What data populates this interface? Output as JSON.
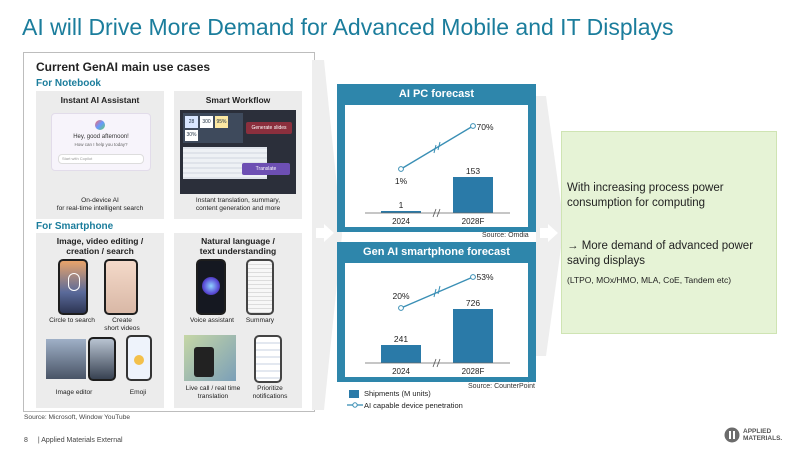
{
  "title": "AI will Drive More Demand for Advanced Mobile and IT Displays",
  "left_panel": {
    "heading": "Current GenAI main use cases",
    "notebook_label": "For Notebook",
    "smartphone_label": "For Smartphone",
    "cards": {
      "assistant": {
        "title": "Instant AI Assistant",
        "caption": "On-device AI\nfor real-time intelligent search",
        "screen_text": "Hey, good afternoon!",
        "screen_sub": "How can I help you today?",
        "search_placeholder": "Start with Copilot"
      },
      "workflow": {
        "title": "Smart Workflow",
        "caption": "Instant translation, summary,\ncontent generation and more",
        "generate_label": "Generate slides",
        "translate_label": "Translate",
        "stats": [
          "28",
          "300",
          "95%",
          "30%"
        ]
      },
      "image_edit": {
        "title": "Image, video editing /\ncreation / search",
        "circle_caption": "Circle to search",
        "video_caption": "Create\nshort videos",
        "editor_caption": "Image editor",
        "emoji_caption": "Emoji"
      },
      "language": {
        "title": "Natural language /\ntext understanding",
        "voice_caption": "Voice assistant",
        "summary_caption": "Summary",
        "live_caption": "Live call / real time\ntranslation",
        "prioritize_caption": "Prioritize\nnotifications"
      }
    },
    "source": "Source: Microsoft, Window YouTube"
  },
  "pc_chart": {
    "title": "AI PC forecast",
    "source": "Source: Omdia"
  },
  "phone_chart": {
    "title": "Gen AI smartphone forecast",
    "source": "Source: CounterPoint"
  },
  "legend": {
    "bars": "Shipments (M units)",
    "line": "AI capable device penetration"
  },
  "chart_data": [
    {
      "type": "bar",
      "title": "AI PC forecast",
      "categories": [
        "2024",
        "2028F"
      ],
      "series": [
        {
          "name": "Shipments (M units)",
          "type": "bar",
          "values": [
            1,
            153
          ]
        },
        {
          "name": "AI capable device penetration",
          "type": "line",
          "values": [
            "1%",
            "70%"
          ]
        }
      ],
      "bar_labels": [
        "1",
        "153"
      ],
      "line_labels": [
        "1%",
        "70%"
      ],
      "axis_break": true
    },
    {
      "type": "bar",
      "title": "Gen AI smartphone forecast",
      "categories": [
        "2024",
        "2028F"
      ],
      "series": [
        {
          "name": "Shipments (M units)",
          "type": "bar",
          "values": [
            241,
            726
          ]
        },
        {
          "name": "AI capable device penetration",
          "type": "line",
          "values": [
            "20%",
            "53%"
          ]
        }
      ],
      "bar_labels": [
        "241",
        "726"
      ],
      "line_labels": [
        "20%",
        "53%"
      ],
      "axis_break": true
    }
  ],
  "takeaway": {
    "line1": "With increasing process power consumption for computing",
    "line2": "→ More demand of advanced power saving displays",
    "line3": "(LTPO, MOx/HMO, MLA, CoE, Tandem etc)"
  },
  "footer": {
    "page": "8",
    "label": "| Applied Materials External",
    "logo_text": "APPLIED MATERIALS."
  },
  "colors": {
    "title": "#1b7d9c",
    "chart_panel": "#2e86ab",
    "bar": "#2a7aa8",
    "line": "#3a8fb5",
    "green_box": "#e6f3d6"
  }
}
